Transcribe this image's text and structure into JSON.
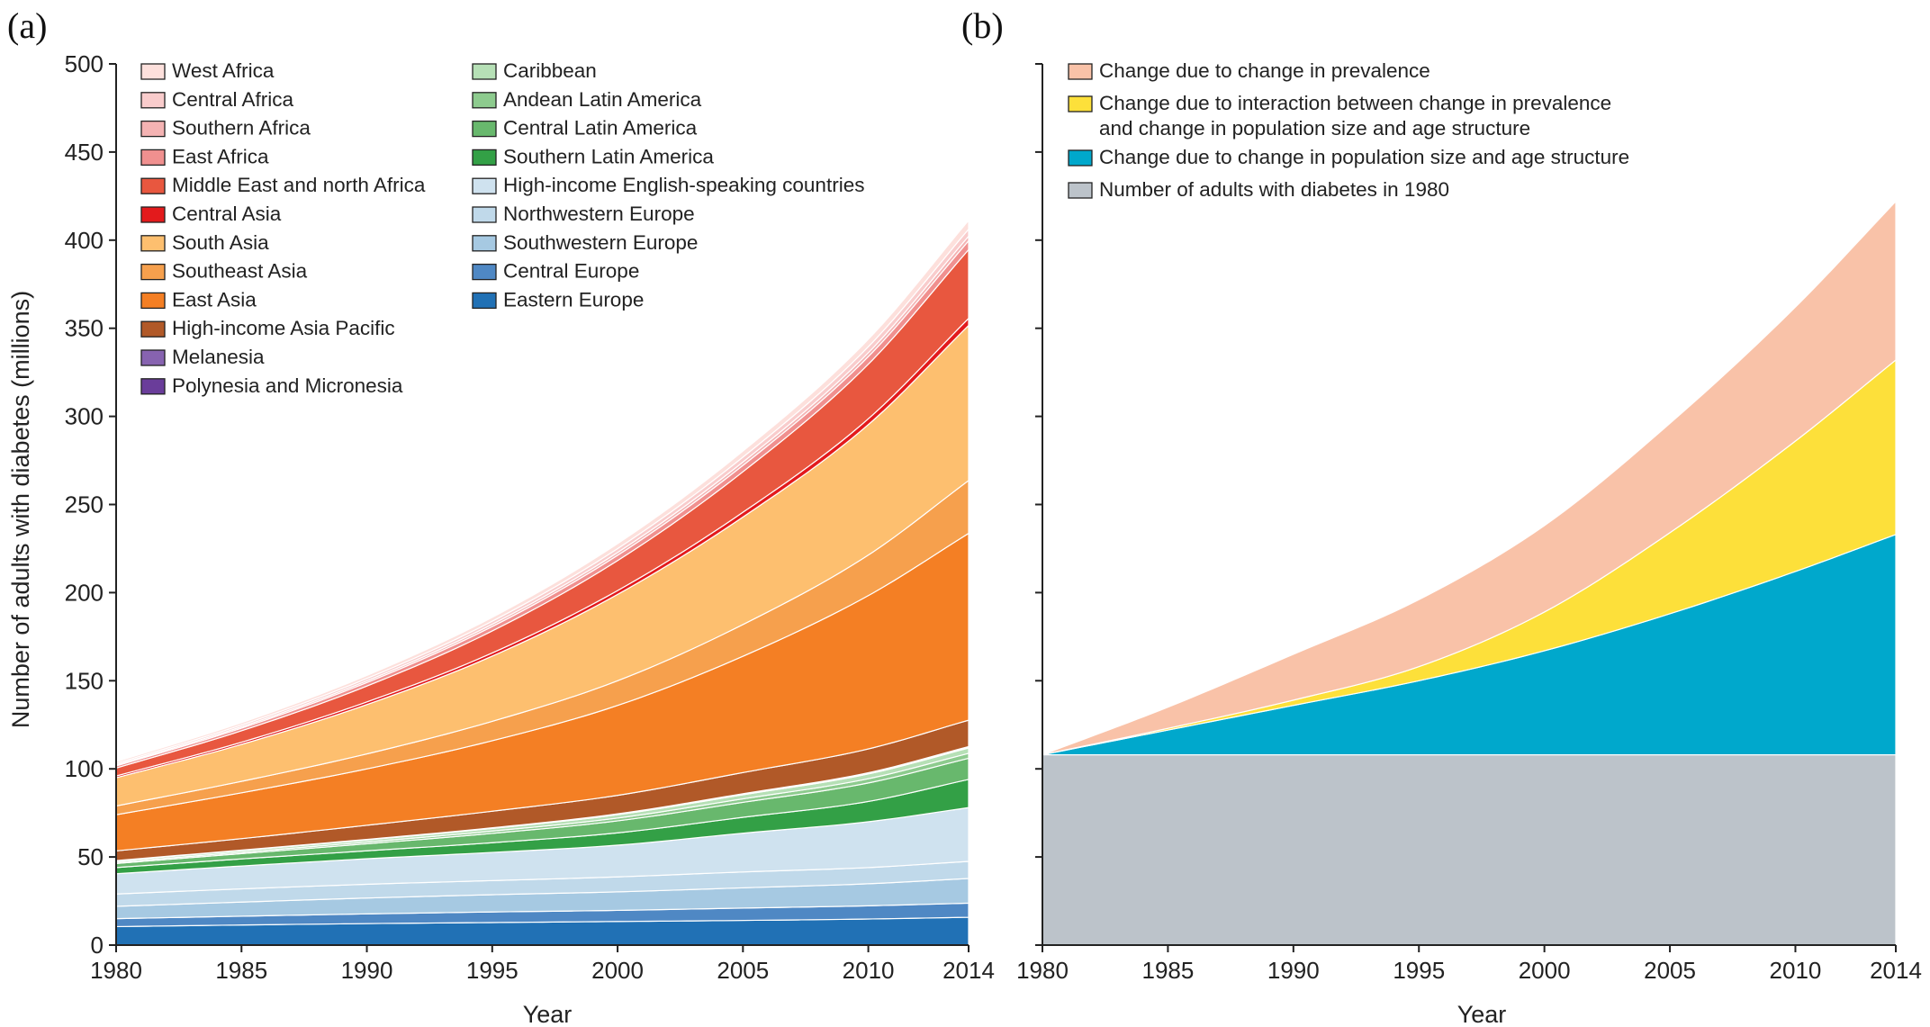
{
  "chart_data": [
    {
      "panel_label": "(a)",
      "type": "area",
      "stacked": true,
      "xlabel": "Year",
      "ylabel": "Number of adults with diabetes (millions)",
      "xlim": [
        1980,
        2014
      ],
      "ylim": [
        0,
        500
      ],
      "x_ticks": [
        1980,
        1985,
        1990,
        1995,
        2000,
        2005,
        2010,
        2014
      ],
      "y_ticks": [
        0,
        50,
        100,
        150,
        200,
        250,
        300,
        350,
        400,
        450,
        500
      ],
      "x": [
        1980,
        1985,
        1990,
        1995,
        2000,
        2005,
        2010,
        2014
      ],
      "legend_position": "top-left",
      "legend_columns": [
        [
          "West Africa",
          "Central Africa",
          "Southern Africa",
          "East Africa",
          "Middle East and north Africa",
          "Central Asia",
          "South Asia",
          "Southeast Asia",
          "East Asia",
          "High-income Asia Pacific",
          "Melanesia",
          "Polynesia and Micronesia"
        ],
        [
          "Caribbean",
          "Andean Latin America",
          "Central Latin America",
          "Southern Latin America",
          "High-income English-speaking countries",
          "Northwestern Europe",
          "Southwestern Europe",
          "Central Europe",
          "Eastern Europe"
        ]
      ],
      "series": [
        {
          "name": "Eastern Europe",
          "color": "#2171b5",
          "values": [
            10.5,
            11.4,
            12.2,
            12.8,
            13.4,
            14.0,
            14.8,
            15.8
          ]
        },
        {
          "name": "Central Europe",
          "color": "#4f88c4",
          "values": [
            4.5,
            5.0,
            5.5,
            6.0,
            6.3,
            7.0,
            7.5,
            8.0
          ]
        },
        {
          "name": "Southwestern Europe",
          "color": "#a6c9e2",
          "values": [
            7.0,
            8.0,
            9.0,
            9.8,
            10.5,
            11.5,
            12.5,
            14.0
          ]
        },
        {
          "name": "Northwestern Europe",
          "color": "#c0d9ea",
          "values": [
            7.0,
            7.5,
            7.8,
            8.0,
            8.5,
            9.0,
            9.2,
            9.7
          ]
        },
        {
          "name": "High-income English-speaking countries",
          "color": "#cfe2ef",
          "values": [
            11.5,
            13.0,
            14.5,
            16.0,
            18.0,
            22.0,
            26.0,
            30.5
          ]
        },
        {
          "name": "Southern Latin America",
          "color": "#33a046",
          "values": [
            3.5,
            4.0,
            4.5,
            5.5,
            7.0,
            9.0,
            11.5,
            16.0
          ]
        },
        {
          "name": "Central Latin America",
          "color": "#68b86d",
          "values": [
            2.3,
            3.0,
            4.0,
            5.3,
            6.8,
            8.5,
            10.5,
            12.0
          ]
        },
        {
          "name": "Andean Latin America",
          "color": "#8dcb8e",
          "values": [
            0.7,
            0.8,
            1.0,
            1.3,
            1.6,
            2.0,
            2.4,
            2.8
          ]
        },
        {
          "name": "Caribbean",
          "color": "#b6e0b6",
          "values": [
            0.8,
            1.0,
            1.2,
            1.5,
            1.9,
            2.3,
            2.7,
            3.0
          ]
        },
        {
          "name": "Polynesia and Micronesia",
          "color": "#6a3d9a",
          "values": [
            0.05,
            0.07,
            0.09,
            0.11,
            0.14,
            0.17,
            0.2,
            0.22
          ]
        },
        {
          "name": "Melanesia",
          "color": "#8763b0",
          "values": [
            0.1,
            0.15,
            0.2,
            0.26,
            0.34,
            0.43,
            0.52,
            0.6
          ]
        },
        {
          "name": "High-income Asia Pacific",
          "color": "#b15928",
          "values": [
            5.5,
            6.5,
            8.0,
            9.4,
            10.5,
            12.0,
            13.5,
            15.0
          ]
        },
        {
          "name": "East Asia",
          "color": "#f47f24",
          "values": [
            20.5,
            26.0,
            32.0,
            40.0,
            51.0,
            66.0,
            87.0,
            106.0
          ]
        },
        {
          "name": "Southeast Asia",
          "color": "#f6a04d",
          "values": [
            5.0,
            6.5,
            8.5,
            11.0,
            14.0,
            18.0,
            23.0,
            30.0
          ]
        },
        {
          "name": "South Asia",
          "color": "#fdbf6f",
          "values": [
            16.0,
            21.0,
            28.0,
            37.0,
            49.0,
            61.0,
            74.0,
            88.0
          ]
        },
        {
          "name": "Central Asia",
          "color": "#e31a1c",
          "values": [
            1.0,
            1.2,
            1.5,
            1.8,
            2.2,
            2.7,
            3.3,
            4.0
          ]
        },
        {
          "name": "Middle East and north Africa",
          "color": "#e8573f",
          "values": [
            4.5,
            6.5,
            9.0,
            12.5,
            17.0,
            23.0,
            31.0,
            39.0
          ]
        },
        {
          "name": "East Africa",
          "color": "#f0908f",
          "values": [
            1.2,
            1.5,
            2.0,
            2.5,
            3.0,
            3.6,
            4.3,
            5.0
          ]
        },
        {
          "name": "Southern Africa",
          "color": "#f4b3b3",
          "values": [
            0.6,
            0.8,
            1.0,
            1.3,
            1.6,
            1.9,
            2.2,
            2.6
          ]
        },
        {
          "name": "Central Africa",
          "color": "#f9cccc",
          "values": [
            0.8,
            1.0,
            1.3,
            1.7,
            2.2,
            2.8,
            3.4,
            4.0
          ]
        },
        {
          "name": "West Africa",
          "color": "#fde0dc",
          "values": [
            1.0,
            1.3,
            1.7,
            2.2,
            2.8,
            3.4,
            4.2,
            5.0
          ]
        }
      ]
    },
    {
      "panel_label": "(b)",
      "type": "area",
      "stacked": true,
      "xlabel": "Year",
      "ylabel": "",
      "xlim": [
        1980,
        2014
      ],
      "ylim": [
        0,
        500
      ],
      "x_ticks": [
        1980,
        1985,
        1990,
        1995,
        2000,
        2005,
        2010,
        2014
      ],
      "y_ticks": [
        0,
        50,
        100,
        150,
        200,
        250,
        300,
        350,
        400,
        450,
        500
      ],
      "x": [
        1980,
        1985,
        1990,
        1995,
        2000,
        2005,
        2010,
        2014
      ],
      "legend_position": "top-left",
      "legend_order": [
        "Change due to change in prevalence",
        "Change due to interaction between change in prevalence\nand change in population size and age structure",
        "Change due to change in population size and age structure",
        "Number of adults with diabetes in 1980"
      ],
      "series": [
        {
          "name": "Number of adults with diabetes in 1980",
          "color": "#bcc3ca",
          "values": [
            108,
            108,
            108,
            108,
            108,
            108,
            108,
            108
          ]
        },
        {
          "name": "Change due to change in population size and age structure",
          "color": "#00a8cc",
          "values": [
            0,
            14,
            28,
            42,
            59,
            80,
            104,
            125
          ]
        },
        {
          "name": "Change due to interaction between change in prevalence\nand change in population size and age structure",
          "color": "#fde03a",
          "values": [
            0,
            1,
            3,
            8,
            22,
            46,
            74,
            99
          ]
        },
        {
          "name": "Change due to change in prevalence",
          "color": "#f9c2a8",
          "values": [
            0,
            12,
            26,
            38,
            49,
            62,
            76,
            90
          ]
        }
      ]
    }
  ]
}
